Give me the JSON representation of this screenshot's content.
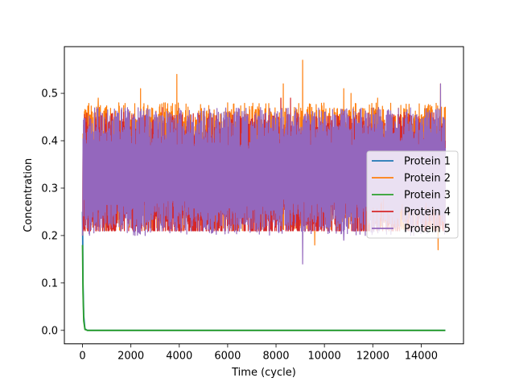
{
  "chart_data": {
    "type": "line",
    "title": "",
    "xlabel": "Time (cycle)",
    "ylabel": "Concentration",
    "xlim": [
      -750,
      15750
    ],
    "ylim": [
      -0.0285,
      0.5985
    ],
    "x_ticks": [
      0,
      2000,
      4000,
      6000,
      8000,
      10000,
      12000,
      14000
    ],
    "y_ticks": [
      0.0,
      0.1,
      0.2,
      0.3,
      0.4,
      0.5
    ],
    "y_tick_labels": [
      "0.0",
      "0.1",
      "0.2",
      "0.3",
      "0.4",
      "0.5"
    ],
    "grid": false,
    "legend_position": "center-right",
    "series": [
      {
        "name": "Protein 1",
        "color": "#1f77b4",
        "x": [
          0,
          20,
          50,
          100,
          200,
          500,
          1000,
          15000
        ],
        "y": [
          0.25,
          0.1,
          0.03,
          0.003,
          0.0,
          0.0,
          0.0,
          0.0
        ],
        "behavior": "decay"
      },
      {
        "name": "Protein 2",
        "color": "#ff7f0e",
        "x": [
          0,
          15000
        ],
        "y_range": [
          0.17,
          0.57
        ],
        "baseline": 0.34,
        "peaks": [
          [
            650,
            0.49
          ],
          [
            2400,
            0.51
          ],
          [
            3900,
            0.54
          ],
          [
            8200,
            0.49
          ],
          [
            8300,
            0.52
          ],
          [
            9100,
            0.57
          ],
          [
            9600,
            0.18
          ],
          [
            10800,
            0.51
          ],
          [
            11100,
            0.5
          ],
          [
            12200,
            0.49
          ],
          [
            14700,
            0.17
          ],
          [
            14800,
            0.52
          ]
        ],
        "behavior": "oscillating"
      },
      {
        "name": "Protein 3",
        "color": "#2ca02c",
        "x": [
          0,
          20,
          50,
          100,
          200,
          500,
          1000,
          15000
        ],
        "y": [
          0.18,
          0.08,
          0.02,
          0.002,
          0.0,
          0.0,
          0.0,
          0.0
        ],
        "behavior": "decay"
      },
      {
        "name": "Protein 4",
        "color": "#d62728",
        "x": [
          0,
          15000
        ],
        "y_range": [
          0.19,
          0.5
        ],
        "baseline": 0.32,
        "peaks": [
          [
            3300,
            0.47
          ],
          [
            8200,
            0.49
          ],
          [
            8600,
            0.49
          ],
          [
            13300,
            0.46
          ]
        ],
        "behavior": "oscillating"
      },
      {
        "name": "Protein 5",
        "color": "#9467bd",
        "x": [
          0,
          15000
        ],
        "y_range": [
          0.14,
          0.52
        ],
        "baseline": 0.33,
        "peaks": [
          [
            9100,
            0.14
          ],
          [
            10800,
            0.19
          ],
          [
            14800,
            0.52
          ]
        ],
        "behavior": "oscillating"
      }
    ]
  }
}
